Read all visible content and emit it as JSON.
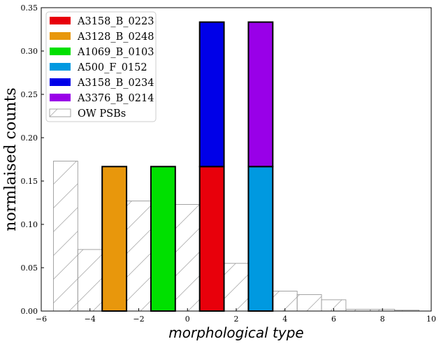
{
  "chart_data": {
    "type": "bar",
    "title": "",
    "xlabel": "morphological type",
    "ylabel": "normlaised counts",
    "xlim": [
      -6,
      10
    ],
    "ylim": [
      0,
      0.35
    ],
    "xticks": [
      -6,
      -4,
      -2,
      0,
      2,
      4,
      6,
      8,
      10
    ],
    "yticks": [
      0.0,
      0.05,
      0.1,
      0.15,
      0.2,
      0.25,
      0.3,
      0.35
    ],
    "xtick_labels": [
      "−6",
      "−4",
      "−2",
      "0",
      "2",
      "4",
      "6",
      "8",
      "10"
    ],
    "ytick_labels": [
      "0.00",
      "0.05",
      "0.10",
      "0.15",
      "0.20",
      "0.25",
      "0.30",
      "0.35"
    ],
    "bin_width": 1,
    "legend_position": "top-left",
    "stacked_series": [
      {
        "name": "A3158_B_0223",
        "color": "#e8000b",
        "bins": [
          {
            "center": 1,
            "value": 0.1667
          }
        ]
      },
      {
        "name": "A3128_B_0248",
        "color": "#e8970c",
        "bins": [
          {
            "center": -3,
            "value": 0.1667
          }
        ]
      },
      {
        "name": "A1069_B_0103",
        "color": "#00e000",
        "bins": [
          {
            "center": -1,
            "value": 0.1667
          }
        ]
      },
      {
        "name": "A500_F_0152",
        "color": "#0099e0",
        "bins": [
          {
            "center": 3,
            "value": 0.1667
          }
        ]
      },
      {
        "name": "A3158_B_0234",
        "color": "#0000e8",
        "bins": [
          {
            "center": 1,
            "value": 0.1667
          }
        ]
      },
      {
        "name": "A3376_B_0214",
        "color": "#9900e8",
        "bins": [
          {
            "center": 3,
            "value": 0.1667
          }
        ]
      }
    ],
    "reference_series": {
      "name": "OW PSBs",
      "style": "hatched-step",
      "edges": [
        -5.5,
        -4.5,
        -3.5,
        -2.5,
        -1.5,
        -0.5,
        0.5,
        1.5,
        2.5,
        3.5,
        4.5,
        5.5,
        6.5,
        7.5,
        8.5,
        9.5
      ],
      "values": [
        0.173,
        0.071,
        0.097,
        0.127,
        0.13,
        0.123,
        0.089,
        0.055,
        0.073,
        0.023,
        0.019,
        0.013,
        0.002,
        0.002,
        0.001
      ]
    }
  }
}
